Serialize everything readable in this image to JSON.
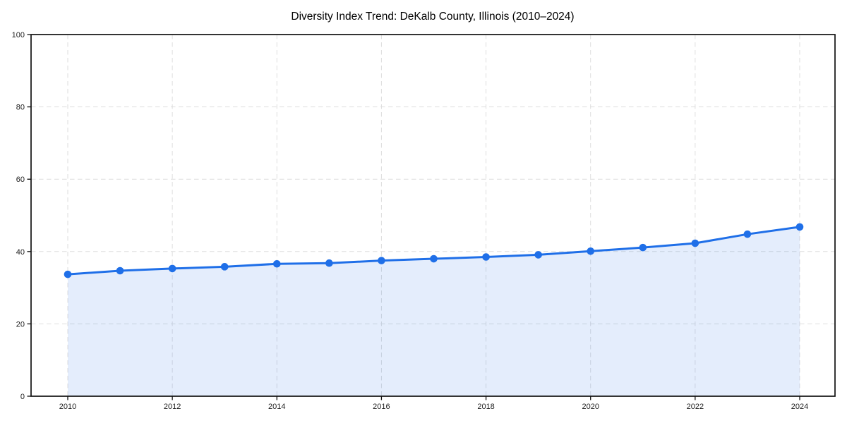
{
  "chart_data": {
    "type": "area",
    "title": "Diversity Index Trend: DeKalb County, Illinois (2010–2024)",
    "x": [
      2010,
      2011,
      2012,
      2013,
      2014,
      2015,
      2016,
      2017,
      2018,
      2019,
      2020,
      2021,
      2022,
      2023,
      2024
    ],
    "values": [
      33.7,
      34.7,
      35.3,
      35.8,
      36.6,
      36.8,
      37.5,
      38.0,
      38.5,
      39.1,
      40.1,
      41.1,
      42.3,
      44.8,
      46.8
    ],
    "xlabel": "",
    "ylabel": "",
    "ylim": [
      0,
      100
    ],
    "yticks": [
      0,
      20,
      40,
      60,
      80,
      100
    ],
    "xticks": [
      2010,
      2012,
      2014,
      2016,
      2018,
      2020,
      2022,
      2024
    ],
    "grid": true,
    "grid_style": "dashed",
    "legend": false,
    "markers": true,
    "colors": {
      "line": "#1f6fe8",
      "fill": "rgba(31, 111, 232, 0.12)",
      "grid": "#dedede",
      "axis": "#111111",
      "tick_label": "#1d1d1d",
      "title": "#000000",
      "background": "#ffffff"
    }
  }
}
